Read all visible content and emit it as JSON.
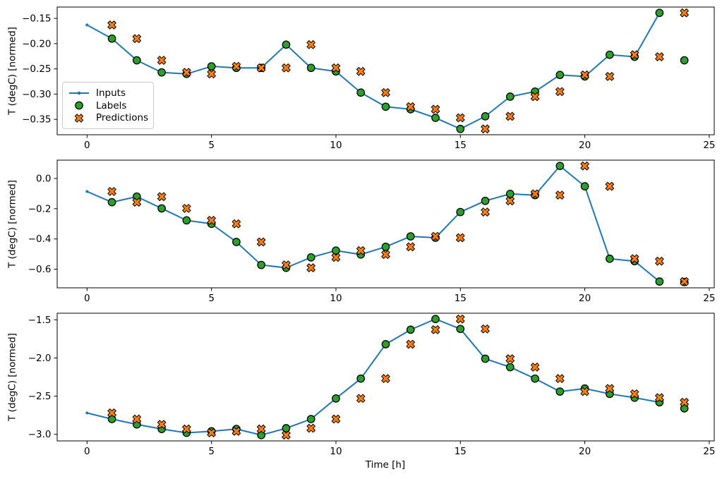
{
  "figure": {
    "xlabel": "Time [h]",
    "ylabel": "T (degC) [normed]",
    "colors": {
      "inputs": "#1f77b4",
      "labels": "#2ca02c",
      "predictions": "#ff7f0e",
      "marker_edge": "#000000",
      "spine": "#000000",
      "legend_border": "#cbcbcb",
      "background": "#ffffff"
    }
  },
  "chart_data": [
    {
      "type": "line",
      "title": "",
      "xlabel": "",
      "ylabel": "T (degC) [normed]",
      "xlim": [
        -1.2,
        25.2
      ],
      "ylim": [
        -0.3805,
        -0.1275
      ],
      "xticks": [
        0,
        5,
        10,
        15,
        20,
        25
      ],
      "xtick_labels": [
        "0",
        "5",
        "10",
        "15",
        "20",
        "25"
      ],
      "yticks": [
        -0.15,
        -0.2,
        -0.25,
        -0.3,
        -0.35
      ],
      "ytick_labels": [
        "−0.15",
        "−0.20",
        "−0.25",
        "−0.30",
        "−0.35"
      ],
      "grid": false,
      "legend": true,
      "legend_position": "lower left inside axes",
      "series": [
        {
          "name": "Inputs",
          "marker": "line+dot",
          "color": "#1f77b4",
          "x": [
            0,
            1,
            2,
            3,
            4,
            5,
            6,
            7,
            8,
            9,
            10,
            11,
            12,
            13,
            14,
            15,
            16,
            17,
            18,
            19,
            20,
            21,
            22,
            23
          ],
          "y": [
            -0.163,
            -0.19,
            -0.233,
            -0.257,
            -0.26,
            -0.245,
            -0.248,
            -0.248,
            -0.202,
            -0.248,
            -0.255,
            -0.297,
            -0.325,
            -0.33,
            -0.347,
            -0.369,
            -0.344,
            -0.305,
            -0.295,
            -0.262,
            -0.265,
            -0.222,
            -0.226,
            -0.139
          ]
        },
        {
          "name": "Labels",
          "marker": "circle",
          "color": "#2ca02c",
          "x": [
            1,
            2,
            3,
            4,
            5,
            6,
            7,
            8,
            9,
            10,
            11,
            12,
            13,
            14,
            15,
            16,
            17,
            18,
            19,
            20,
            21,
            22,
            23,
            24
          ],
          "y": [
            -0.19,
            -0.233,
            -0.257,
            -0.26,
            -0.245,
            -0.248,
            -0.248,
            -0.202,
            -0.248,
            -0.255,
            -0.297,
            -0.325,
            -0.33,
            -0.347,
            -0.369,
            -0.344,
            -0.305,
            -0.295,
            -0.262,
            -0.265,
            -0.222,
            -0.226,
            -0.139,
            -0.233
          ]
        },
        {
          "name": "Predictions",
          "marker": "X",
          "color": "#ff7f0e",
          "x": [
            1,
            2,
            3,
            4,
            5,
            6,
            7,
            8,
            9,
            10,
            11,
            12,
            13,
            14,
            15,
            16,
            17,
            18,
            19,
            20,
            21,
            22,
            23,
            24
          ],
          "y": [
            -0.163,
            -0.19,
            -0.233,
            -0.257,
            -0.26,
            -0.245,
            -0.248,
            -0.248,
            -0.202,
            -0.248,
            -0.255,
            -0.297,
            -0.325,
            -0.33,
            -0.347,
            -0.369,
            -0.344,
            -0.305,
            -0.295,
            -0.262,
            -0.265,
            -0.222,
            -0.226,
            -0.139
          ]
        }
      ]
    },
    {
      "type": "line",
      "title": "",
      "xlabel": "",
      "ylabel": "T (degC) [normed]",
      "xlim": [
        -1.2,
        25.2
      ],
      "ylim": [
        -0.7234,
        0.1214
      ],
      "xticks": [
        0,
        5,
        10,
        15,
        20,
        25
      ],
      "xtick_labels": [
        "0",
        "5",
        "10",
        "15",
        "20",
        "25"
      ],
      "yticks": [
        0.0,
        -0.2,
        -0.4,
        -0.6
      ],
      "ytick_labels": [
        "0.0",
        "−0.2",
        "−0.4",
        "−0.6"
      ],
      "grid": false,
      "legend": false,
      "series": [
        {
          "name": "Inputs",
          "marker": "line+dot",
          "color": "#1f77b4",
          "x": [
            0,
            1,
            2,
            3,
            4,
            5,
            6,
            7,
            8,
            9,
            10,
            11,
            12,
            13,
            14,
            15,
            16,
            17,
            18,
            19,
            20,
            21,
            22,
            23
          ],
          "y": [
            -0.086,
            -0.157,
            -0.12,
            -0.198,
            -0.277,
            -0.3,
            -0.42,
            -0.572,
            -0.591,
            -0.522,
            -0.477,
            -0.503,
            -0.452,
            -0.383,
            -0.392,
            -0.222,
            -0.148,
            -0.102,
            -0.11,
            0.083,
            -0.052,
            -0.531,
            -0.547,
            -0.682
          ]
        },
        {
          "name": "Labels",
          "marker": "circle",
          "color": "#2ca02c",
          "x": [
            1,
            2,
            3,
            4,
            5,
            6,
            7,
            8,
            9,
            10,
            11,
            12,
            13,
            14,
            15,
            16,
            17,
            18,
            19,
            20,
            21,
            22,
            23,
            24
          ],
          "y": [
            -0.157,
            -0.12,
            -0.198,
            -0.277,
            -0.3,
            -0.42,
            -0.572,
            -0.591,
            -0.522,
            -0.477,
            -0.503,
            -0.452,
            -0.383,
            -0.392,
            -0.222,
            -0.148,
            -0.102,
            -0.11,
            0.083,
            -0.052,
            -0.531,
            -0.547,
            -0.682,
            -0.685
          ]
        },
        {
          "name": "Predictions",
          "marker": "X",
          "color": "#ff7f0e",
          "x": [
            1,
            2,
            3,
            4,
            5,
            6,
            7,
            8,
            9,
            10,
            11,
            12,
            13,
            14,
            15,
            16,
            17,
            18,
            19,
            20,
            21,
            22,
            23,
            24
          ],
          "y": [
            -0.086,
            -0.157,
            -0.12,
            -0.198,
            -0.277,
            -0.3,
            -0.42,
            -0.572,
            -0.591,
            -0.522,
            -0.477,
            -0.503,
            -0.452,
            -0.383,
            -0.392,
            -0.222,
            -0.148,
            -0.102,
            -0.11,
            0.083,
            -0.052,
            -0.531,
            -0.547,
            -0.682
          ]
        }
      ]
    },
    {
      "type": "line",
      "title": "",
      "xlabel": "Time [h]",
      "ylabel": "T (degC) [normed]",
      "xlim": [
        -1.2,
        25.2
      ],
      "ylim": [
        -3.086,
        -1.414
      ],
      "xticks": [
        0,
        5,
        10,
        15,
        20,
        25
      ],
      "xtick_labels": [
        "0",
        "5",
        "10",
        "15",
        "20",
        "25"
      ],
      "yticks": [
        -1.5,
        -2.0,
        -2.5,
        -3.0
      ],
      "ytick_labels": [
        "−1.5",
        "−2.0",
        "−2.5",
        "−3.0"
      ],
      "grid": false,
      "legend": false,
      "series": [
        {
          "name": "Inputs",
          "marker": "line+dot",
          "color": "#1f77b4",
          "x": [
            0,
            1,
            2,
            3,
            4,
            5,
            6,
            7,
            8,
            9,
            10,
            11,
            12,
            13,
            14,
            15,
            16,
            17,
            18,
            19,
            20,
            21,
            22,
            23
          ],
          "y": [
            -2.72,
            -2.8,
            -2.87,
            -2.93,
            -2.98,
            -2.96,
            -2.93,
            -3.01,
            -2.92,
            -2.8,
            -2.53,
            -2.27,
            -1.82,
            -1.63,
            -1.49,
            -1.62,
            -2.01,
            -2.12,
            -2.27,
            -2.44,
            -2.4,
            -2.47,
            -2.52,
            -2.58
          ]
        },
        {
          "name": "Labels",
          "marker": "circle",
          "color": "#2ca02c",
          "x": [
            1,
            2,
            3,
            4,
            5,
            6,
            7,
            8,
            9,
            10,
            11,
            12,
            13,
            14,
            15,
            16,
            17,
            18,
            19,
            20,
            21,
            22,
            23,
            24
          ],
          "y": [
            -2.8,
            -2.87,
            -2.93,
            -2.98,
            -2.96,
            -2.93,
            -3.01,
            -2.92,
            -2.8,
            -2.53,
            -2.27,
            -1.82,
            -1.63,
            -1.49,
            -1.62,
            -2.01,
            -2.12,
            -2.27,
            -2.44,
            -2.4,
            -2.47,
            -2.52,
            -2.58,
            -2.66
          ]
        },
        {
          "name": "Predictions",
          "marker": "X",
          "color": "#ff7f0e",
          "x": [
            1,
            2,
            3,
            4,
            5,
            6,
            7,
            8,
            9,
            10,
            11,
            12,
            13,
            14,
            15,
            16,
            17,
            18,
            19,
            20,
            21,
            22,
            23,
            24
          ],
          "y": [
            -2.72,
            -2.8,
            -2.87,
            -2.93,
            -2.98,
            -2.96,
            -2.93,
            -3.01,
            -2.92,
            -2.8,
            -2.53,
            -2.27,
            -1.82,
            -1.63,
            -1.49,
            -1.62,
            -2.01,
            -2.12,
            -2.27,
            -2.44,
            -2.4,
            -2.47,
            -2.52,
            -2.58
          ]
        }
      ]
    }
  ]
}
